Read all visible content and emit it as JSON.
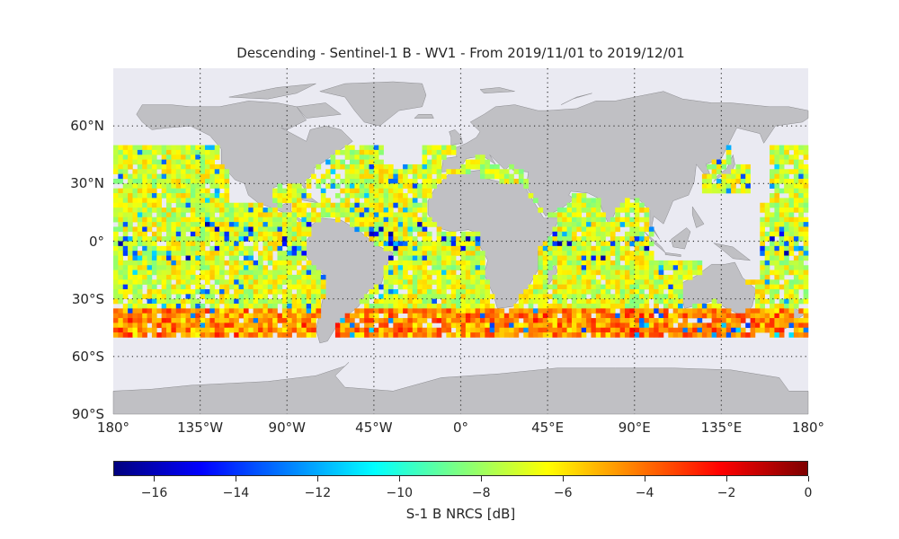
{
  "title": "Descending - Sentinel-1 B - WV1 - From 2019/11/01 to 2019/12/01",
  "lat_ticks": [
    {
      "label": "60°N",
      "value": 60
    },
    {
      "label": "30°N",
      "value": 30
    },
    {
      "label": "0°",
      "value": 0
    },
    {
      "label": "30°S",
      "value": -30
    },
    {
      "label": "60°S",
      "value": -60
    },
    {
      "label": "90°S",
      "value": -90
    }
  ],
  "lon_ticks": [
    {
      "label": "180°",
      "value": -180
    },
    {
      "label": "135°W",
      "value": -135
    },
    {
      "label": "90°W",
      "value": -90
    },
    {
      "label": "45°W",
      "value": -45
    },
    {
      "label": "0°",
      "value": 0
    },
    {
      "label": "45°E",
      "value": 45
    },
    {
      "label": "90°E",
      "value": 90
    },
    {
      "label": "135°E",
      "value": 135
    },
    {
      "label": "180°",
      "value": 180
    }
  ],
  "colorbar": {
    "label": "S-1 B NRCS [dB]",
    "min": -17,
    "max": 0,
    "ticks": [
      "−16",
      "−14",
      "−12",
      "−10",
      "−8",
      "−6",
      "−4",
      "−2",
      "0"
    ],
    "tick_values": [
      -16,
      -14,
      -12,
      -10,
      -8,
      -6,
      -4,
      -2,
      0
    ],
    "colormap": "jet"
  },
  "colors": {
    "ocean": "#eaeaf2",
    "land": "#c0c0c4",
    "coast": "#8a8a8e",
    "grid": "#333333"
  },
  "chart_data": {
    "type": "heatmap",
    "projection": "equirectangular",
    "extent_lon": [
      -180,
      180
    ],
    "extent_lat": [
      -90,
      90
    ],
    "gridlines": "dotted",
    "data_coverage_lat": [
      -50,
      50
    ],
    "variable": "NRCS",
    "units": "dB",
    "value_range": [
      -17,
      0
    ],
    "typical_value": -6
  }
}
